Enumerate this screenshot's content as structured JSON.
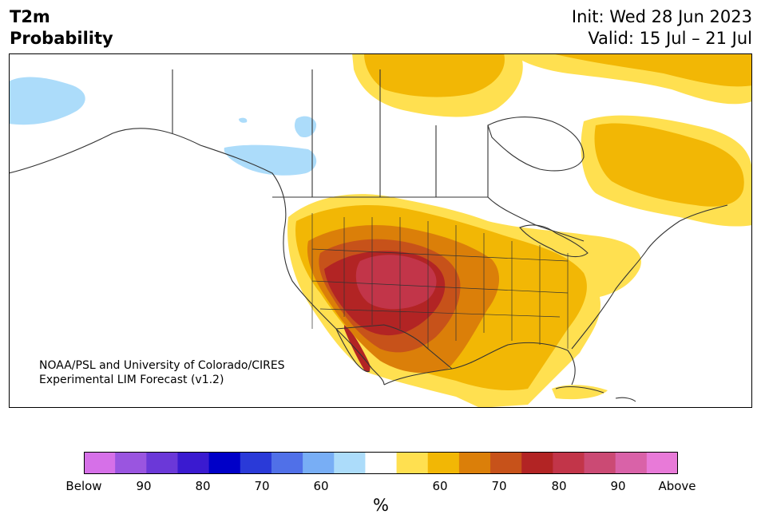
{
  "header": {
    "variable": "T2m",
    "product": "Probability",
    "init": "Init: Wed 28 Jun 2023",
    "valid": "Valid: 15 Jul – 21 Jul"
  },
  "credit": {
    "line1": "NOAA/PSL and University of Colorado/CIRES",
    "line2": "Experimental LIM Forecast (v1.2)"
  },
  "colorbar": {
    "unit": "%",
    "colors": [
      "#d670e8",
      "#9a55e0",
      "#6b38d8",
      "#3a1ad0",
      "#0000c8",
      "#2a3ad8",
      "#5070e8",
      "#78aef5",
      "#acdcfa",
      "#ffffff",
      "#ffe050",
      "#f2b705",
      "#db7f09",
      "#c7521a",
      "#b22424",
      "#c23549",
      "#cb4a74",
      "#d962a8",
      "#e87ad8"
    ],
    "tick_labels": [
      "Below",
      "90",
      "80",
      "70",
      "60",
      "60",
      "70",
      "80",
      "90",
      "Above"
    ]
  },
  "legend_colors": {
    "ocean": "#ffffff",
    "land": "#ffffff",
    "borders": "#333333"
  }
}
